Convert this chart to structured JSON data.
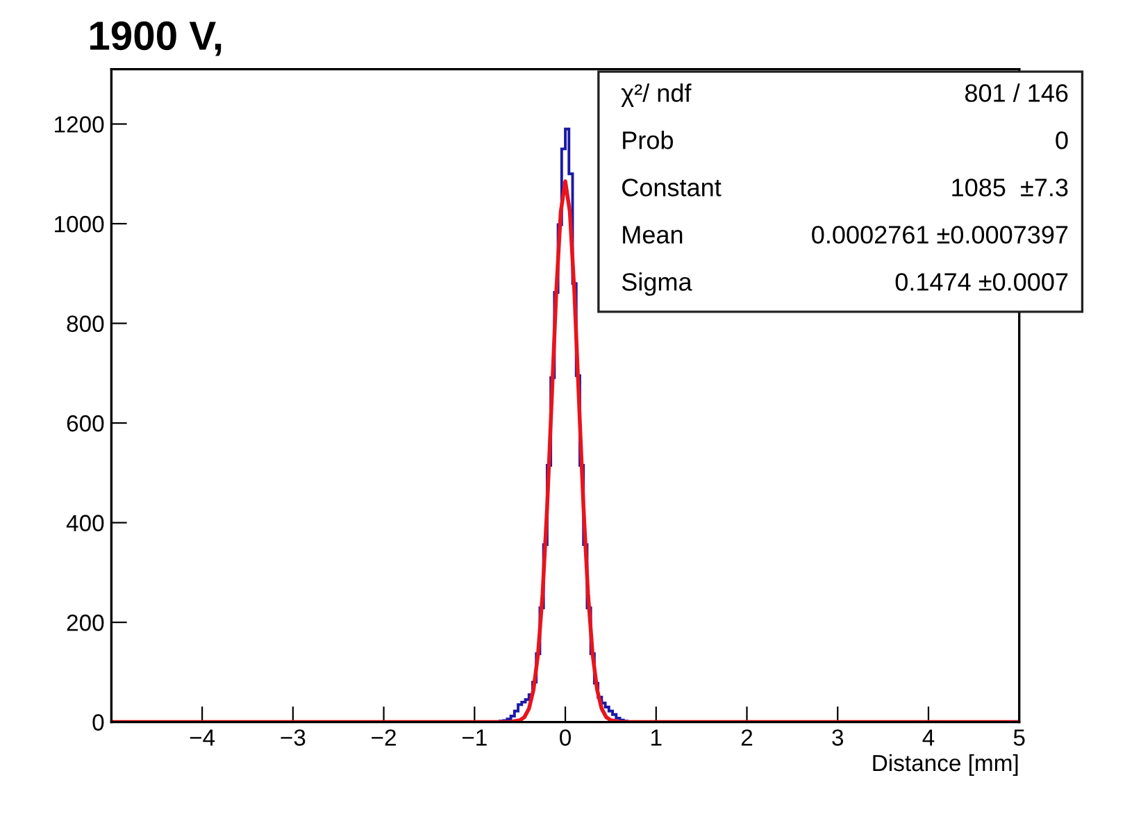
{
  "chart_data": {
    "type": "histogram",
    "title": "1900 V,",
    "xlabel": "Distance [mm]",
    "bins": [
      -5,
      -0.72,
      -0.68,
      -0.64,
      -0.6,
      -0.56,
      -0.52,
      -0.48,
      -0.44,
      -0.4,
      -0.36,
      -0.32,
      -0.28,
      -0.24,
      -0.2,
      -0.16,
      -0.12,
      -0.08,
      -0.04,
      0,
      0.04,
      0.08,
      0.12,
      0.16,
      0.2,
      0.24,
      0.28,
      0.32,
      0.36,
      0.4,
      0.44,
      0.48,
      0.52,
      0.56,
      0.6,
      0.64,
      0.68,
      0.72,
      5
    ],
    "values": [
      0,
      2,
      3,
      6,
      12,
      22,
      35,
      40,
      45,
      55,
      80,
      137,
      229,
      356,
      515,
      691,
      862,
      998,
      1150,
      1190,
      1100,
      880,
      695,
      515,
      356,
      229,
      137,
      78,
      50,
      38,
      30,
      22,
      15,
      8,
      4,
      2,
      1,
      0
    ],
    "color": "#1a1aa6",
    "series": [
      {
        "type": "line",
        "color": "#e8141c",
        "x": [
          -5,
          -0.7,
          -0.6,
          -0.5,
          -0.45,
          -0.4,
          -0.35,
          -0.3,
          -0.25,
          -0.2,
          -0.15,
          -0.1,
          -0.05,
          0,
          0.05,
          0.1,
          0.15,
          0.2,
          0.25,
          0.3,
          0.35,
          0.4,
          0.45,
          0.5,
          0.6,
          0.7,
          5
        ],
        "values": [
          0,
          0,
          0.3,
          3.5,
          10,
          27,
          65,
          137,
          258,
          432,
          646,
          862,
          1024,
          1085,
          1024,
          862,
          646,
          432,
          258,
          137,
          65,
          27,
          10,
          3.5,
          0.3,
          0,
          0
        ]
      }
    ],
    "xlim": [
      -5,
      5
    ],
    "xticks": [
      -4,
      -3,
      -2,
      -1,
      0,
      1,
      2,
      3,
      4,
      5
    ],
    "ylim": [
      0,
      1310
    ],
    "yticks": [
      0,
      200,
      400,
      600,
      800,
      1000,
      1200
    ],
    "annotations": [
      "χ²/ ndf",
      "801 / 146",
      "Prob",
      "0",
      "Constant",
      "1085  ±7.3",
      "Mean",
      "0.0002761 ±0.0007397",
      "Sigma",
      "0.1474 ±0.0007"
    ],
    "grid": false,
    "legend": false
  }
}
